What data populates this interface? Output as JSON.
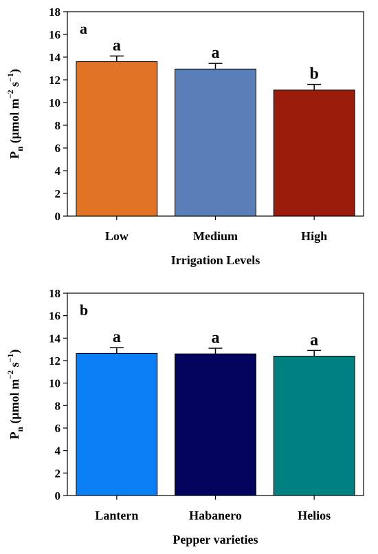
{
  "chart_data": [
    {
      "type": "bar",
      "panel_label": "a",
      "categories": [
        "Low",
        "Medium",
        "High"
      ],
      "values": [
        13.6,
        12.95,
        11.1
      ],
      "errors": [
        0.5,
        0.5,
        0.5
      ],
      "significance": [
        "a",
        "a",
        "b"
      ],
      "colors": [
        "#e07324",
        "#5a7fb8",
        "#9c1c0c"
      ],
      "xlabel": "Irrigation Levels",
      "ylabel_main": "P",
      "ylabel_sub": "n",
      "ylabel_unit": " (µmol m",
      "ylabel_exp1": "−2",
      "ylabel_mid": " s",
      "ylabel_exp2": "−1",
      "ylabel_end": ")",
      "ylim": [
        0,
        18
      ],
      "yticks": [
        0,
        2,
        4,
        6,
        8,
        10,
        12,
        14,
        16,
        18
      ]
    },
    {
      "type": "bar",
      "panel_label": "b",
      "categories": [
        "Lantern",
        "Habanero",
        "Helios"
      ],
      "values": [
        12.65,
        12.6,
        12.4
      ],
      "errors": [
        0.5,
        0.5,
        0.5
      ],
      "significance": [
        "a",
        "a",
        "a"
      ],
      "colors": [
        "#0a7ff5",
        "#03045e",
        "#008080"
      ],
      "xlabel": "Pepper varieties",
      "ylabel_main": "P",
      "ylabel_sub": "n",
      "ylabel_unit": " (µmol m",
      "ylabel_exp1": "−2",
      "ylabel_mid": " s",
      "ylabel_exp2": "−1",
      "ylabel_end": ")",
      "ylim": [
        0,
        18
      ],
      "yticks": [
        0,
        2,
        4,
        6,
        8,
        10,
        12,
        14,
        16,
        18
      ]
    }
  ]
}
